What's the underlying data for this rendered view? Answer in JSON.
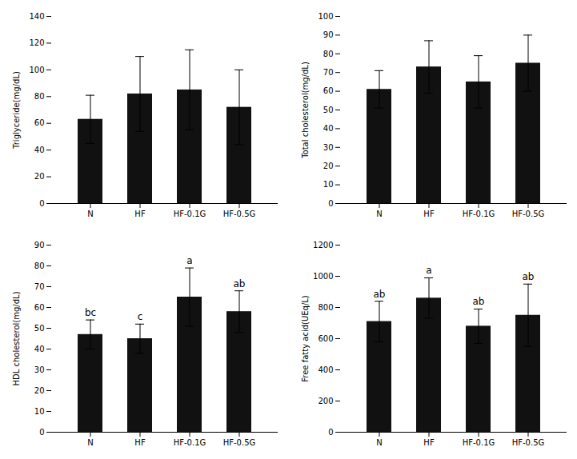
{
  "chart_data": [
    {
      "type": "bar",
      "ylabel": "Triglyceride(mg/dL)",
      "categories": [
        "N",
        "HF",
        "HF-0.1G",
        "HF-0.5G"
      ],
      "values": [
        63,
        82,
        85,
        72
      ],
      "errors": [
        18,
        28,
        30,
        28
      ],
      "color": "#111111",
      "ylim": [
        0,
        140
      ],
      "yticks": [
        0,
        20,
        40,
        60,
        80,
        100,
        120,
        140
      ],
      "grid": false
    },
    {
      "type": "bar",
      "ylabel": "Total cholesterol(mg/dL)",
      "categories": [
        "N",
        "HF",
        "HF-0.1G",
        "HF-0.5G"
      ],
      "values": [
        61,
        73,
        65,
        75
      ],
      "errors": [
        10,
        14,
        14,
        15
      ],
      "color": "#111111",
      "ylim": [
        0,
        100
      ],
      "yticks": [
        0,
        10,
        20,
        30,
        40,
        50,
        60,
        70,
        80,
        90,
        100
      ],
      "grid": false
    },
    {
      "type": "bar",
      "ylabel": "HDL cholesterol(mg/dL)",
      "categories": [
        "N",
        "HF",
        "HF-0.1G",
        "HF-0.5G"
      ],
      "values": [
        47,
        45,
        65,
        58
      ],
      "errors": [
        7,
        7,
        14,
        10
      ],
      "annotations": [
        "bc",
        "c",
        "a",
        "ab"
      ],
      "color": "#111111",
      "ylim": [
        0,
        90
      ],
      "yticks": [
        0,
        10,
        20,
        30,
        40,
        50,
        60,
        70,
        80,
        90
      ],
      "grid": false
    },
    {
      "type": "bar",
      "ylabel": "Free fatty acid(UEq/L)",
      "categories": [
        "N",
        "HF",
        "HF-0.1G",
        "HF-0.5G"
      ],
      "values": [
        710,
        860,
        680,
        750
      ],
      "errors": [
        130,
        130,
        110,
        200
      ],
      "annotations": [
        "ab",
        "a",
        "ab",
        "ab"
      ],
      "color": "#111111",
      "ylim": [
        0,
        1200
      ],
      "yticks": [
        0,
        200,
        400,
        600,
        800,
        1000,
        1200
      ],
      "grid": false
    }
  ]
}
